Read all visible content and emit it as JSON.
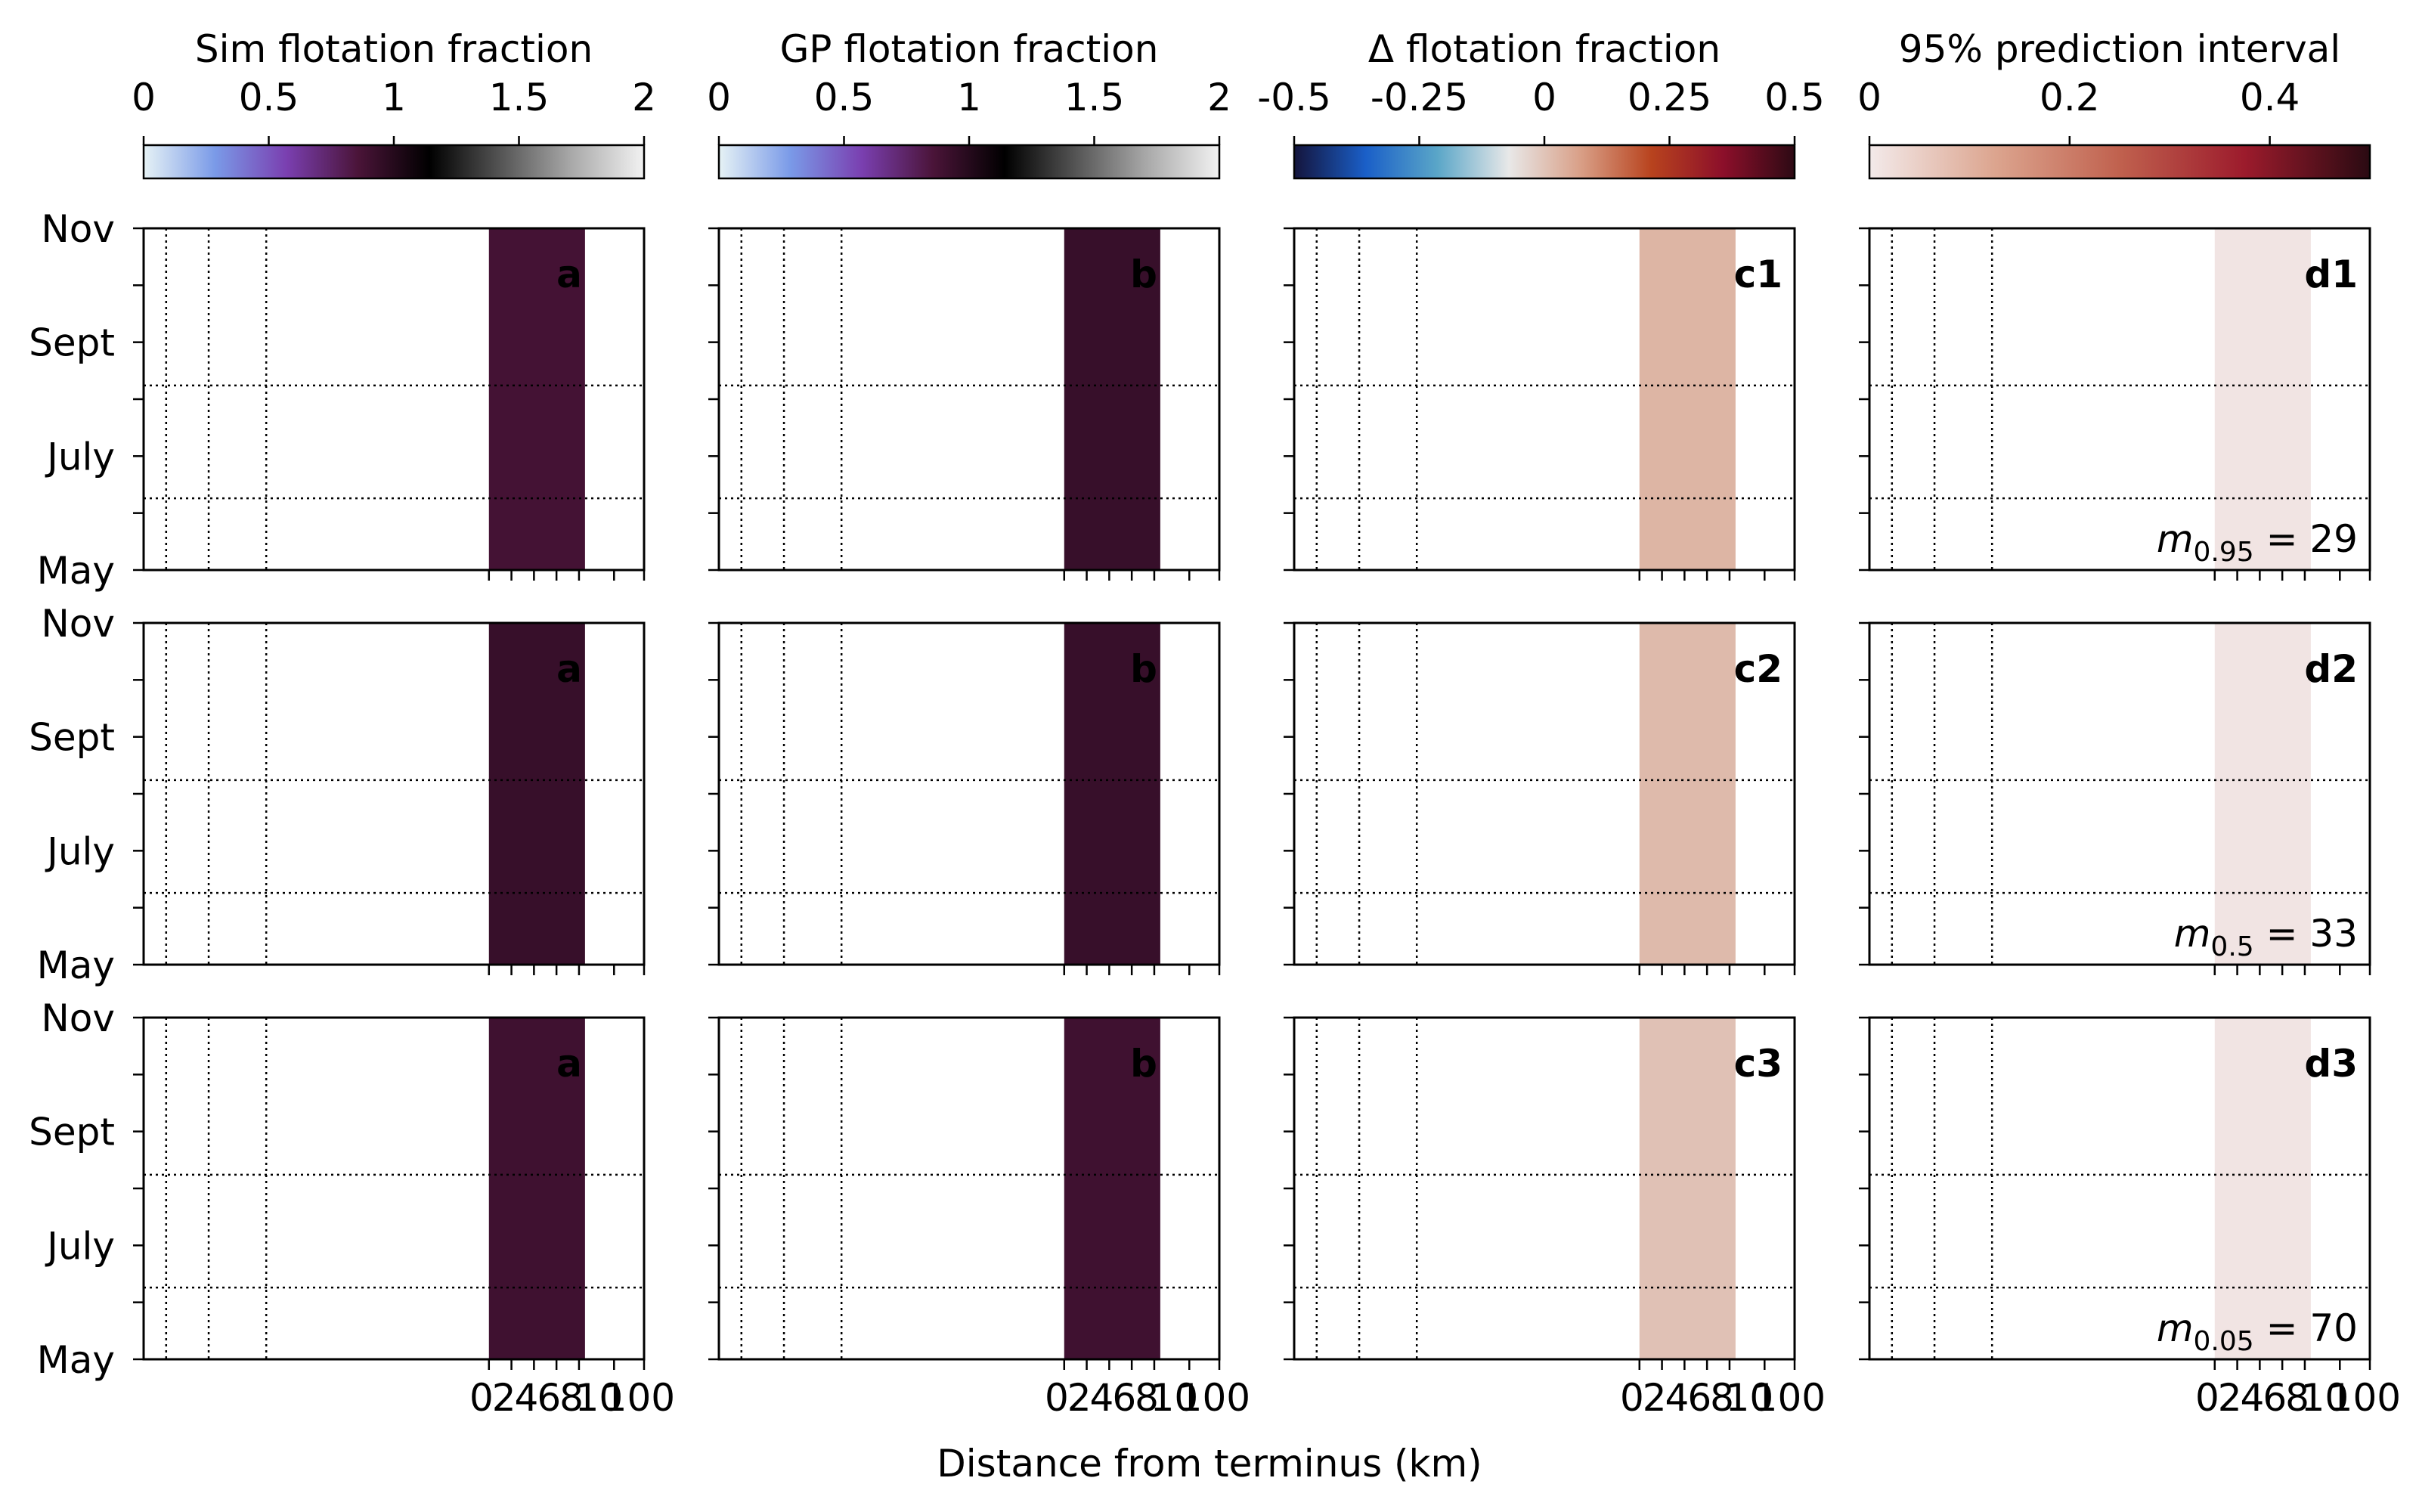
{
  "chart_data": {
    "type": "heatmap",
    "xlabel": "Distance from terminus (km)",
    "x_ticks": [
      "0",
      "2",
      "4",
      "6",
      "8",
      "10",
      "100"
    ],
    "y_ticks": [
      "Nov",
      "Sept",
      "July",
      "May"
    ],
    "columns": [
      {
        "colorbar_label": "Sim flotation fraction",
        "colorbar_ticks": [
          "0",
          "0.5",
          "1",
          "1.5",
          "2"
        ],
        "colorbar_range": [
          0,
          2
        ],
        "colormap": [
          "#e6f2f5",
          "#7a9ae8",
          "#7a3fb0",
          "#4a1438",
          "#000000",
          "#555555",
          "#aaaaaa",
          "#f2f2f2"
        ],
        "panel_letter": "a"
      },
      {
        "colorbar_label": "GP flotation fraction",
        "colorbar_ticks": [
          "0",
          "0.5",
          "1",
          "1.5",
          "2"
        ],
        "colorbar_range": [
          0,
          2
        ],
        "colormap": [
          "#e6f2f5",
          "#7a9ae8",
          "#7a3fb0",
          "#4a1438",
          "#000000",
          "#555555",
          "#aaaaaa",
          "#f2f2f2"
        ],
        "panel_letter": "b"
      },
      {
        "colorbar_label": "Δ flotation fraction",
        "colorbar_ticks": [
          "-0.5",
          "-0.25",
          "0",
          "0.25",
          "0.5"
        ],
        "colorbar_range": [
          -0.5,
          0.5
        ],
        "colormap": [
          "#14143c",
          "#1a5fc8",
          "#5aa6c8",
          "#e8e8e8",
          "#d9a088",
          "#b8431e",
          "#8c0f2a",
          "#2d0a14"
        ],
        "panel_letter": "c"
      },
      {
        "colorbar_label": "95% prediction interval",
        "colorbar_ticks": [
          "0",
          "0.2",
          "0.4"
        ],
        "colorbar_range": [
          0,
          0.5
        ],
        "colormap": [
          "#f3eaea",
          "#dca58f",
          "#c0614e",
          "#9c1b2c",
          "#2a0a12"
        ],
        "panel_letter": "d"
      }
    ],
    "rows": [
      {
        "row_label": "1",
        "annotation_symbol": "m",
        "annotation_sub": "0.95",
        "annotation_text": " = 29"
      },
      {
        "row_label": "2",
        "annotation_symbol": "m",
        "annotation_sub": "0.5",
        "annotation_text": " = 33"
      },
      {
        "row_label": "3",
        "annotation_symbol": "m",
        "annotation_sub": "0.05",
        "annotation_text": " = 70"
      }
    ],
    "heatmap_values": {
      "sim": [
        0.88,
        0.93,
        0.9
      ],
      "gp": [
        0.93,
        0.93,
        0.9
      ],
      "delta": [
        0.03,
        0.02,
        0.005
      ],
      "interval": [
        0.01,
        0.01,
        0.01
      ]
    },
    "data_extent_km": [
      0,
      8
    ],
    "date_gridlines": [
      "Aug",
      "June"
    ]
  }
}
